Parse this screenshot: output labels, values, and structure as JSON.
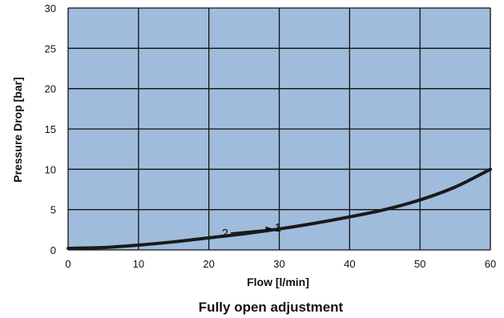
{
  "chart_data": {
    "type": "line",
    "title": "",
    "caption": "Fully open adjustment",
    "xlabel": "Flow  [l/min]",
    "ylabel": "Pressure Drop [bar]",
    "xlim": [
      0,
      60
    ],
    "ylim": [
      0,
      30
    ],
    "x_ticks": [
      0,
      10,
      20,
      30,
      40,
      50,
      60
    ],
    "y_ticks": [
      0,
      5,
      10,
      15,
      20,
      25,
      30
    ],
    "grid": true,
    "plot_background": "#a0bcdc",
    "grid_color": "#111111",
    "series": [
      {
        "color": "#1a1a1a",
        "x": [
          0,
          5,
          10,
          15,
          20,
          25,
          30,
          35,
          40,
          45,
          50,
          55,
          60
        ],
        "y": [
          0.2,
          0.3,
          0.6,
          1.0,
          1.5,
          2.0,
          2.6,
          3.3,
          4.1,
          5.0,
          6.2,
          7.8,
          10.0
        ]
      }
    ],
    "annotation": {
      "from_label": "2",
      "to_label": "1",
      "x_from": 23,
      "x_to": 30,
      "y": 2.2
    }
  }
}
